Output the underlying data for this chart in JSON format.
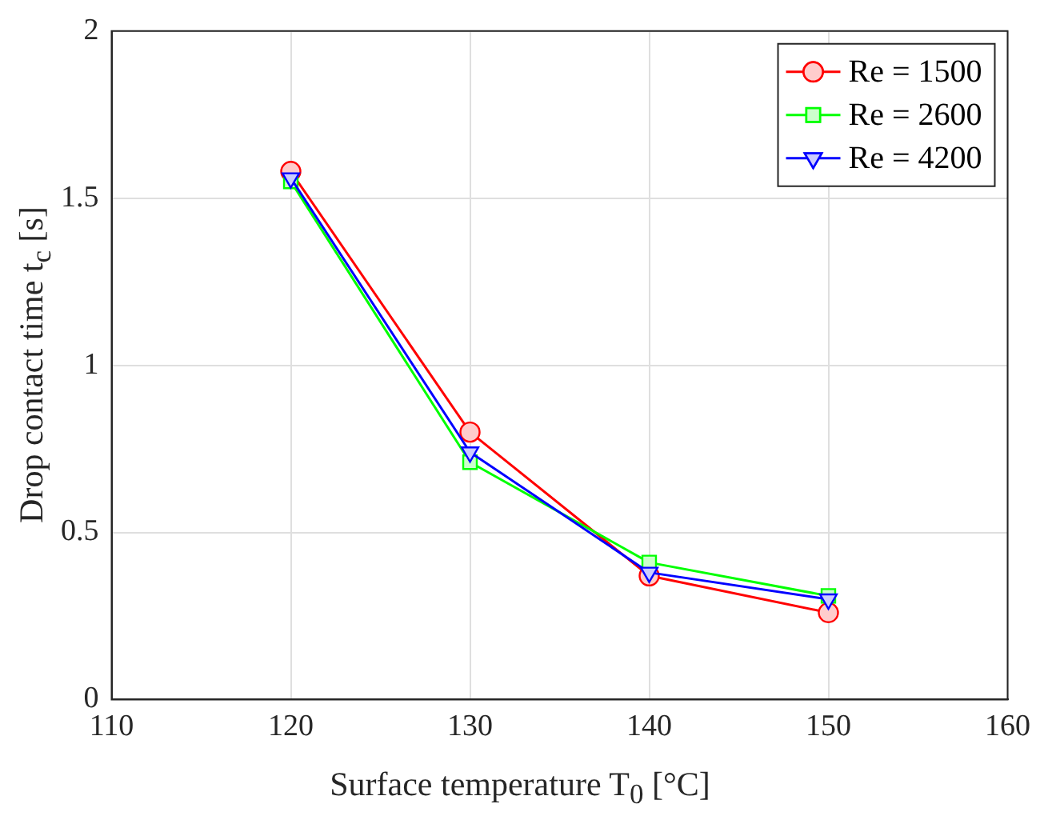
{
  "chart_data": {
    "type": "line",
    "xlabel": "Surface temperature T$_{0}$ [°C]",
    "ylabel": "Drop contact time t$_{c}$ [s]",
    "x": [
      120,
      130,
      140,
      150
    ],
    "series": [
      {
        "name": "Re = 1500",
        "color": "#ff0000",
        "values": [
          1.58,
          0.8,
          0.37,
          0.26
        ],
        "marker": "circle"
      },
      {
        "name": "Re = 2600",
        "color": "#00ff00",
        "values": [
          1.55,
          0.71,
          0.41,
          0.31
        ],
        "marker": "square"
      },
      {
        "name": "Re = 4200",
        "color": "#0000ff",
        "values": [
          1.56,
          0.74,
          0.38,
          0.3
        ],
        "marker": "triangle"
      }
    ],
    "xlim": [
      110,
      160
    ],
    "xticks": [
      110,
      120,
      130,
      140,
      150,
      160
    ],
    "ylim": [
      0,
      2
    ],
    "yticks": [
      0,
      0.5,
      1,
      1.5,
      2
    ],
    "grid": true,
    "legend": "top right",
    "line_style": "solid"
  }
}
